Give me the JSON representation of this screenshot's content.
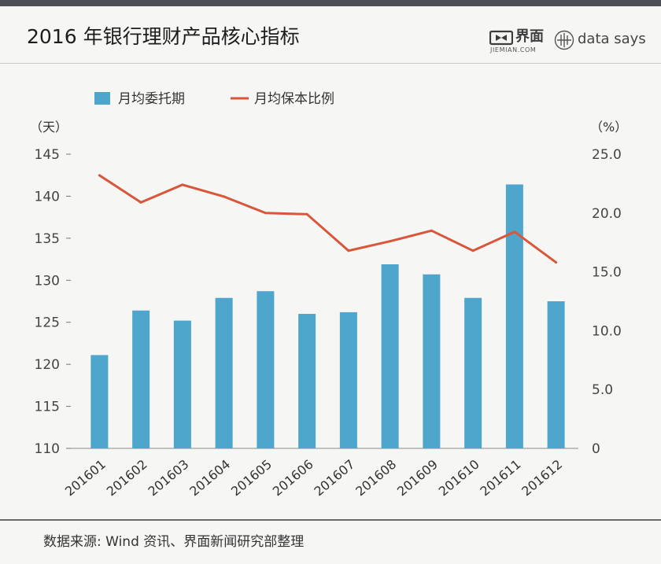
{
  "header": {
    "title": "2016 年银行理财产品核心指标",
    "logos": {
      "jiemian_name": "界面",
      "jiemian_domain": "JIEMIAN.COM",
      "datasays_name": "data says"
    }
  },
  "colors": {
    "bar": "#4ea6cd",
    "line": "#d8573b",
    "top_band": "#4b5056",
    "background": "#f6f6f4"
  },
  "legend": {
    "bar_label": "月均委托期",
    "line_label": "月均保本比例"
  },
  "chart_data": {
    "type": "bar",
    "title": "2016 年银行理财产品核心指标",
    "categories": [
      "201601",
      "201602",
      "201603",
      "201604",
      "201605",
      "201606",
      "201607",
      "201608",
      "201609",
      "201610",
      "201611",
      "201612"
    ],
    "series": [
      {
        "name": "月均委托期",
        "type": "bar",
        "axis": "left",
        "values": [
          121.1,
          126.4,
          125.2,
          127.9,
          128.7,
          126.0,
          126.2,
          131.9,
          130.7,
          127.9,
          141.4,
          127.5
        ]
      },
      {
        "name": "月均保本比例",
        "type": "line",
        "axis": "right",
        "values": [
          23.2,
          20.9,
          22.4,
          21.4,
          20.0,
          19.9,
          16.8,
          17.6,
          18.5,
          16.8,
          18.4,
          15.8
        ]
      }
    ],
    "y_left": {
      "label": "（天）",
      "ylim": [
        110,
        145
      ],
      "ticks": [
        145,
        140,
        135,
        130,
        125,
        120,
        115,
        110
      ],
      "tick_labels": [
        "145",
        "140",
        "135",
        "130",
        "125",
        "120",
        "115",
        "110"
      ]
    },
    "y_right": {
      "label": "（%）",
      "ylim": [
        0,
        25
      ],
      "ticks": [
        25,
        20,
        15,
        10,
        5,
        0
      ],
      "tick_labels": [
        "25.0",
        "20.0",
        "15.0",
        "10.0",
        "5.0",
        "0"
      ]
    },
    "legend_position": "top-left",
    "grid": false
  },
  "footer": {
    "source": "数据来源: Wind 资讯、界面新闻研究部整理"
  }
}
